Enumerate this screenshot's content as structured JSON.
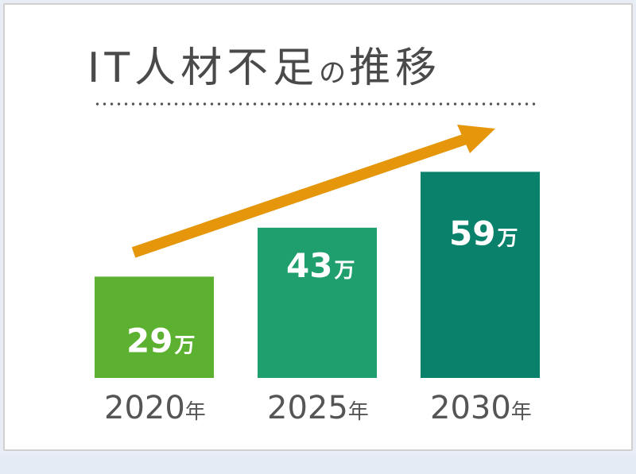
{
  "chart_data": {
    "type": "bar",
    "title": "IT人材不足の推移",
    "categories": [
      "2020年",
      "2025年",
      "2030年"
    ],
    "values": [
      29,
      43,
      59
    ],
    "unit": "万",
    "ylim": [
      0,
      70
    ],
    "colors": [
      "#5db130",
      "#1f9e6e",
      "#0a826b"
    ],
    "arrow_color": "#e5960a",
    "grid": false,
    "legend": "none"
  }
}
